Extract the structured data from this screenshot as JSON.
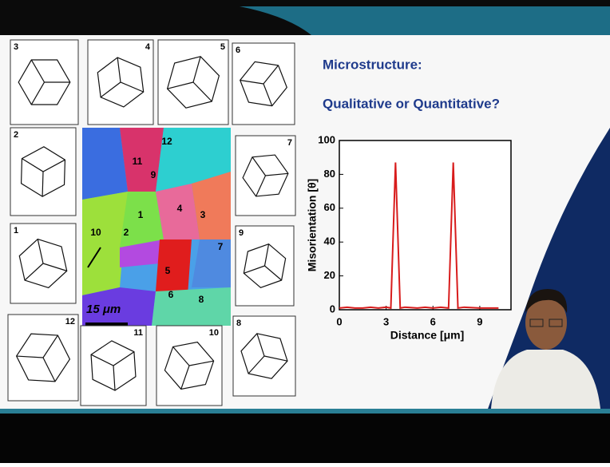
{
  "slide": {
    "heading": "Microstructure:",
    "subheading": "Qualitative or Quantitative?"
  },
  "crystals": [
    {
      "label": "3"
    },
    {
      "label": "4"
    },
    {
      "label": "5"
    },
    {
      "label": "6"
    },
    {
      "label": "2"
    },
    {
      "label": "7"
    },
    {
      "label": "1"
    },
    {
      "label": "9"
    },
    {
      "label": "12"
    },
    {
      "label": "11"
    },
    {
      "label": "10"
    },
    {
      "label": "8"
    }
  ],
  "map": {
    "grains": [
      "12",
      "11",
      "9",
      "1",
      "4",
      "3",
      "2",
      "10",
      "7",
      "5",
      "6",
      "8"
    ],
    "scale_bar": "15 μm"
  },
  "chart_data": {
    "type": "line",
    "x_label": "Distance [μm]",
    "y_label": "Misorientation [θ]",
    "x": [
      0,
      0.5,
      1,
      1.5,
      2,
      2.5,
      3,
      3.3,
      3.6,
      3.9,
      4.2,
      5,
      5.5,
      6,
      6.5,
      7,
      7.3,
      7.6,
      8,
      9,
      10.2
    ],
    "series": [
      {
        "color": "#d81c1c",
        "values": [
          1,
          1.5,
          1,
          1,
          1.5,
          1,
          1.5,
          1,
          87,
          1,
          1.5,
          1,
          1.5,
          1,
          1.5,
          1,
          87,
          1,
          1.5,
          1,
          1
        ]
      }
    ],
    "xlim": [
      0,
      11
    ],
    "xticks": [
      0,
      3,
      6,
      9
    ],
    "ylim": [
      0,
      100
    ],
    "yticks": [
      0,
      20,
      40,
      60,
      80,
      100
    ]
  }
}
